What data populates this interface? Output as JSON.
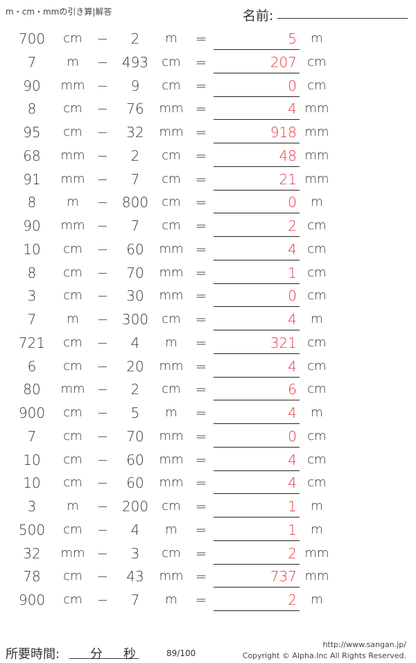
{
  "header": {
    "title": "m・cm・mmの引き算|解答",
    "name_label": "名前:"
  },
  "operator": "−",
  "equals": "=",
  "problems": [
    [
      "700",
      "cm",
      "2",
      "m",
      "5",
      "m"
    ],
    [
      "7",
      "m",
      "493",
      "cm",
      "207",
      "cm"
    ],
    [
      "90",
      "mm",
      "9",
      "cm",
      "0",
      "cm"
    ],
    [
      "8",
      "cm",
      "76",
      "mm",
      "4",
      "mm"
    ],
    [
      "95",
      "cm",
      "32",
      "mm",
      "918",
      "mm"
    ],
    [
      "68",
      "mm",
      "2",
      "cm",
      "48",
      "mm"
    ],
    [
      "91",
      "mm",
      "7",
      "cm",
      "21",
      "mm"
    ],
    [
      "8",
      "m",
      "800",
      "cm",
      "0",
      "m"
    ],
    [
      "90",
      "mm",
      "7",
      "cm",
      "2",
      "cm"
    ],
    [
      "10",
      "cm",
      "60",
      "mm",
      "4",
      "cm"
    ],
    [
      "8",
      "cm",
      "70",
      "mm",
      "1",
      "cm"
    ],
    [
      "3",
      "cm",
      "30",
      "mm",
      "0",
      "cm"
    ],
    [
      "7",
      "m",
      "300",
      "cm",
      "4",
      "m"
    ],
    [
      "721",
      "cm",
      "4",
      "m",
      "321",
      "cm"
    ],
    [
      "6",
      "cm",
      "20",
      "mm",
      "4",
      "cm"
    ],
    [
      "80",
      "mm",
      "2",
      "cm",
      "6",
      "cm"
    ],
    [
      "900",
      "cm",
      "5",
      "m",
      "4",
      "m"
    ],
    [
      "7",
      "cm",
      "70",
      "mm",
      "0",
      "cm"
    ],
    [
      "10",
      "cm",
      "60",
      "mm",
      "4",
      "cm"
    ],
    [
      "10",
      "cm",
      "60",
      "mm",
      "4",
      "cm"
    ],
    [
      "3",
      "m",
      "200",
      "cm",
      "1",
      "m"
    ],
    [
      "500",
      "cm",
      "4",
      "m",
      "1",
      "m"
    ],
    [
      "32",
      "mm",
      "3",
      "cm",
      "2",
      "mm"
    ],
    [
      "78",
      "cm",
      "43",
      "mm",
      "737",
      "mm"
    ],
    [
      "900",
      "cm",
      "7",
      "m",
      "2",
      "m"
    ]
  ],
  "footer": {
    "time_label": "所要時間:",
    "minutes": "分",
    "seconds": "秒",
    "score": "89/100",
    "url": "http://www.sangan.jp/",
    "copyright": "Copyright © Alpha.Inc All Rights Reserved."
  },
  "colors": {
    "answer": "#e8323c"
  }
}
